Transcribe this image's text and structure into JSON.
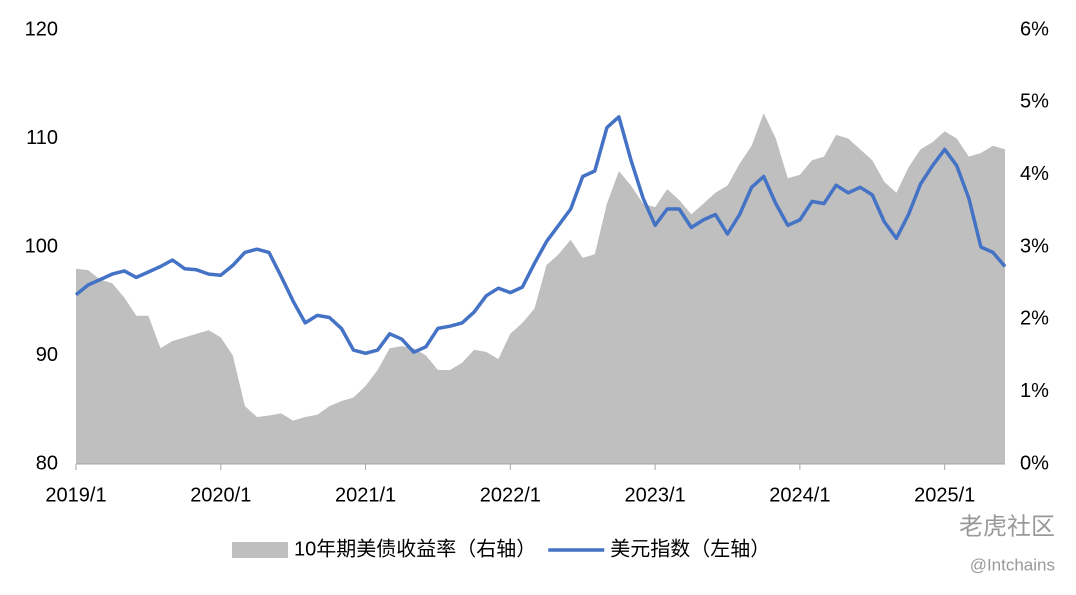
{
  "chart_data": {
    "type": "line",
    "categories": [
      "2019/1",
      null,
      null,
      null,
      null,
      null,
      null,
      null,
      null,
      null,
      null,
      null,
      "2020/1",
      null,
      null,
      null,
      null,
      null,
      null,
      null,
      null,
      null,
      null,
      null,
      "2021/1",
      null,
      null,
      null,
      null,
      null,
      null,
      null,
      null,
      null,
      null,
      null,
      "2022/1",
      null,
      null,
      null,
      null,
      null,
      null,
      null,
      null,
      null,
      null,
      null,
      "2023/1",
      null,
      null,
      null,
      null,
      null,
      null,
      null,
      null,
      null,
      null,
      null,
      "2024/1",
      null,
      null,
      null,
      null,
      null,
      null,
      null,
      null,
      null,
      null,
      null,
      "2025/1",
      null,
      null,
      null,
      null,
      null
    ],
    "series": [
      {
        "name": "10年期美债收益率（右轴）",
        "color": "#bfbfbf",
        "axis": "y2",
        "kind": "area",
        "values": [
          2.7,
          2.68,
          2.55,
          2.5,
          2.3,
          2.05,
          2.05,
          1.6,
          1.7,
          1.75,
          1.8,
          1.85,
          1.75,
          1.5,
          0.8,
          0.65,
          0.67,
          0.7,
          0.6,
          0.65,
          0.68,
          0.8,
          0.87,
          0.92,
          1.08,
          1.3,
          1.6,
          1.63,
          1.6,
          1.5,
          1.3,
          1.3,
          1.4,
          1.58,
          1.55,
          1.45,
          1.8,
          1.95,
          2.15,
          2.75,
          2.9,
          3.1,
          2.85,
          2.9,
          3.6,
          4.05,
          3.85,
          3.6,
          3.55,
          3.8,
          3.65,
          3.45,
          3.6,
          3.75,
          3.85,
          4.15,
          4.4,
          4.85,
          4.5,
          3.95,
          4.0,
          4.2,
          4.25,
          4.55,
          4.5,
          4.35,
          4.2,
          3.9,
          3.75,
          4.1,
          4.35,
          4.45,
          4.6,
          4.5,
          4.25,
          4.3,
          4.4,
          4.35
        ]
      },
      {
        "name": "美元指数（左轴）",
        "color": "#4472c4",
        "kind": "line",
        "values": [
          95.6,
          96.5,
          97,
          97.5,
          97.8,
          97.2,
          97.7,
          98.2,
          98.8,
          98,
          97.9,
          97.5,
          97.4,
          98.3,
          99.5,
          99.8,
          99.5,
          97.3,
          95,
          93,
          93.7,
          93.5,
          92.5,
          90.5,
          90.2,
          90.5,
          92,
          91.5,
          90.3,
          90.8,
          92.5,
          92.7,
          93,
          94,
          95.5,
          96.2,
          95.8,
          96.3,
          98.5,
          100.5,
          102,
          103.5,
          106.5,
          107,
          111,
          112,
          108,
          104.5,
          102,
          103.5,
          103.5,
          101.8,
          102.5,
          103,
          101.2,
          103,
          105.5,
          106.5,
          104,
          102,
          102.5,
          104.2,
          104,
          105.7,
          105,
          105.5,
          104.8,
          102.3,
          100.8,
          103,
          105.8,
          107.5,
          109,
          107.5,
          104.5,
          100,
          99.5,
          98.2
        ]
      }
    ],
    "ylim": [
      80,
      120
    ],
    "yticks": [
      80,
      90,
      100,
      110,
      120
    ],
    "y2lim": [
      0,
      6
    ],
    "y2ticks": [
      {
        "value": 0,
        "label": "0%"
      },
      {
        "value": 1,
        "label": "1%"
      },
      {
        "value": 2,
        "label": "2%"
      },
      {
        "value": 3,
        "label": "3%"
      },
      {
        "value": 4,
        "label": "4%"
      },
      {
        "value": 5,
        "label": "5%"
      },
      {
        "value": 6,
        "label": "6%"
      }
    ],
    "legend": "bottom",
    "watermark": [
      "老虎社区",
      "@Intchains"
    ]
  }
}
